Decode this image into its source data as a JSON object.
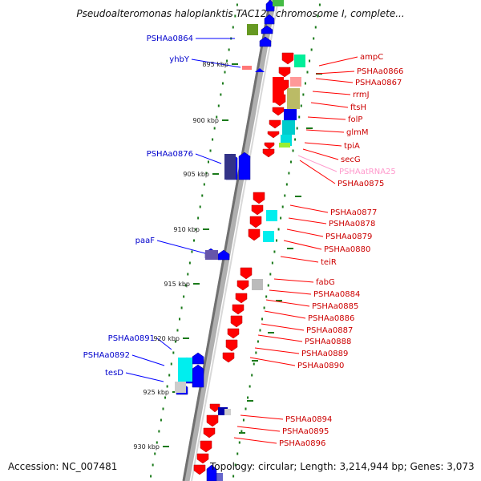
{
  "title": "Pseudoalteromonas haloplanktis TAC125 chromosome I, complete...",
  "footer": {
    "accession": "Accession: NC_007481",
    "summary": "Topology: circular; Length: 3,214,944 bp; Genes: 3,073"
  },
  "colors": {
    "forward_gene": "#ff0000",
    "reverse_gene": "#0000ff",
    "left_label": "#0000cc",
    "right_label": "#cc0000",
    "rna_label": "#ff99cc",
    "tick": "#1a7a1a"
  },
  "kbp_ticks": [
    "895 kbp",
    "900 kbp",
    "905 kbp",
    "910 kbp",
    "915 kbp",
    "920 kbp",
    "925 kbp",
    "930 kbp"
  ],
  "left_labels": [
    "PSHAa0864",
    "yhbY",
    "PSHAa0876",
    "paaF",
    "PSHAa0891",
    "PSHAa0892",
    "tesD"
  ],
  "right_labels": [
    "ampC",
    "PSHAa0866",
    "PSHAa0867",
    "rrmJ",
    "ftsH",
    "folP",
    "glmM",
    "tpiA",
    "secG",
    "PSHAatRNA25",
    "PSHAa0875",
    "PSHAa0877",
    "PSHAa0878",
    "PSHAa0879",
    "PSHAa0880",
    "teiR",
    "fabG",
    "PSHAa0884",
    "PSHAa0885",
    "PSHAa0886",
    "PSHAa0887",
    "PSHAa0888",
    "PSHAa0889",
    "PSHAa0890",
    "PSHAa0894",
    "PSHAa0895",
    "PSHAa0896"
  ]
}
